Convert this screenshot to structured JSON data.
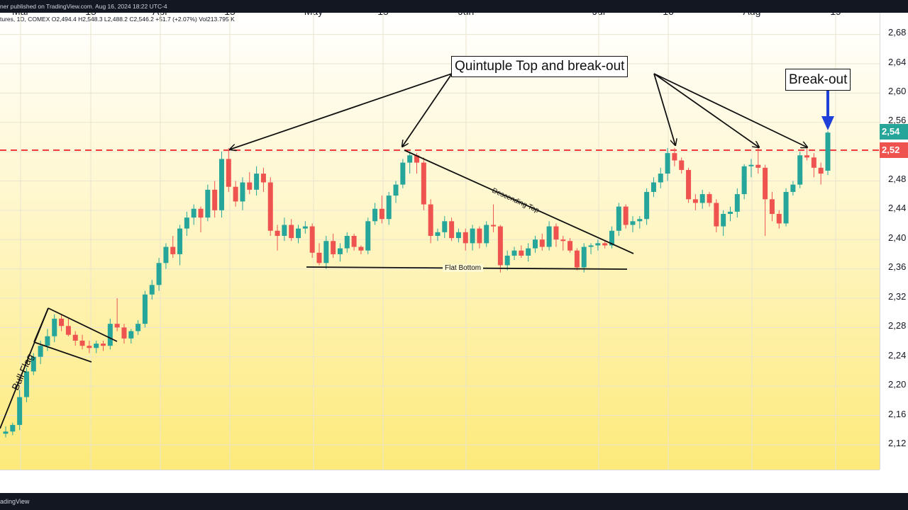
{
  "header": {
    "publish_line": "ner published on TradingView.com, Aug 16, 2024 18:22 UTC-4",
    "ohlc_line": "tures, 1D, COMEX  O2,494.4  H2,548.3  L2,488.2  C2,546.2  +51.7 (+2.07%)  Vol213.795 K"
  },
  "footer": {
    "brand": "adingView"
  },
  "colors": {
    "up": "#26a69a",
    "down": "#ef5350",
    "resistance": "#ef3b3b",
    "arrow": "#1e3fd8"
  },
  "chart_data": {
    "type": "candlestick",
    "price_axis": {
      "ylim": [
        2100,
        2690
      ],
      "ticks": [
        "2,68",
        "2,64",
        "2,60",
        "2,56",
        "2,52",
        "2,48",
        "2,44",
        "2,40",
        "2,36",
        "2,32",
        "2,28",
        "2,24",
        "2,20",
        "2,16",
        "2,12"
      ]
    },
    "time_axis": {
      "ticks": [
        "Mar",
        "15",
        "Apr",
        "15",
        "May",
        "15",
        "Jun",
        "Jul",
        "16",
        "Aug",
        "19"
      ]
    },
    "last_price_label": "2,54",
    "resistance_label": "2,52",
    "resistance_level": 2522,
    "candles": [
      [
        2135,
        2145,
        2130,
        2138
      ],
      [
        2138,
        2150,
        2133,
        2147
      ],
      [
        2147,
        2195,
        2140,
        2185
      ],
      [
        2185,
        2225,
        2178,
        2220
      ],
      [
        2220,
        2245,
        2215,
        2240
      ],
      [
        2240,
        2262,
        2230,
        2255
      ],
      [
        2255,
        2278,
        2248,
        2268
      ],
      [
        2268,
        2298,
        2260,
        2292
      ],
      [
        2292,
        2298,
        2275,
        2282
      ],
      [
        2282,
        2292,
        2268,
        2270
      ],
      [
        2270,
        2275,
        2255,
        2262
      ],
      [
        2262,
        2270,
        2250,
        2255
      ],
      [
        2255,
        2262,
        2245,
        2252
      ],
      [
        2252,
        2262,
        2245,
        2258
      ],
      [
        2258,
        2262,
        2248,
        2255
      ],
      [
        2255,
        2292,
        2250,
        2285
      ],
      [
        2285,
        2320,
        2275,
        2280
      ],
      [
        2280,
        2285,
        2258,
        2265
      ],
      [
        2265,
        2278,
        2258,
        2275
      ],
      [
        2275,
        2290,
        2270,
        2285
      ],
      [
        2285,
        2330,
        2280,
        2325
      ],
      [
        2325,
        2345,
        2318,
        2338
      ],
      [
        2338,
        2375,
        2330,
        2368
      ],
      [
        2368,
        2395,
        2360,
        2390
      ],
      [
        2390,
        2405,
        2375,
        2380
      ],
      [
        2380,
        2420,
        2365,
        2415
      ],
      [
        2415,
        2438,
        2405,
        2430
      ],
      [
        2430,
        2448,
        2420,
        2442
      ],
      [
        2442,
        2445,
        2410,
        2430
      ],
      [
        2430,
        2475,
        2425,
        2468
      ],
      [
        2468,
        2480,
        2430,
        2440
      ],
      [
        2440,
        2520,
        2430,
        2510
      ],
      [
        2510,
        2525,
        2465,
        2472
      ],
      [
        2472,
        2480,
        2445,
        2452
      ],
      [
        2452,
        2485,
        2440,
        2478
      ],
      [
        2478,
        2492,
        2462,
        2468
      ],
      [
        2468,
        2500,
        2460,
        2490
      ],
      [
        2490,
        2498,
        2465,
        2478
      ],
      [
        2478,
        2485,
        2405,
        2412
      ],
      [
        2412,
        2420,
        2385,
        2405
      ],
      [
        2405,
        2430,
        2398,
        2420
      ],
      [
        2420,
        2428,
        2398,
        2402
      ],
      [
        2402,
        2420,
        2395,
        2415
      ],
      [
        2415,
        2425,
        2408,
        2418
      ],
      [
        2418,
        2422,
        2375,
        2382
      ],
      [
        2382,
        2395,
        2365,
        2368
      ],
      [
        2368,
        2405,
        2360,
        2398
      ],
      [
        2398,
        2408,
        2375,
        2380
      ],
      [
        2380,
        2395,
        2370,
        2388
      ],
      [
        2388,
        2410,
        2382,
        2405
      ],
      [
        2405,
        2408,
        2385,
        2390
      ],
      [
        2390,
        2392,
        2380,
        2385
      ],
      [
        2385,
        2430,
        2380,
        2425
      ],
      [
        2425,
        2450,
        2420,
        2442
      ],
      [
        2442,
        2460,
        2422,
        2428
      ],
      [
        2428,
        2465,
        2420,
        2460
      ],
      [
        2460,
        2480,
        2450,
        2475
      ],
      [
        2475,
        2510,
        2470,
        2505
      ],
      [
        2505,
        2520,
        2490,
        2515
      ],
      [
        2515,
        2518,
        2490,
        2505
      ],
      [
        2505,
        2512,
        2440,
        2448
      ],
      [
        2448,
        2455,
        2395,
        2405
      ],
      [
        2405,
        2415,
        2398,
        2410
      ],
      [
        2410,
        2432,
        2402,
        2425
      ],
      [
        2425,
        2430,
        2398,
        2402
      ],
      [
        2402,
        2415,
        2396,
        2410
      ],
      [
        2410,
        2415,
        2385,
        2395
      ],
      [
        2395,
        2420,
        2385,
        2415
      ],
      [
        2415,
        2418,
        2388,
        2395
      ],
      [
        2395,
        2425,
        2390,
        2420
      ],
      [
        2420,
        2448,
        2410,
        2418
      ],
      [
        2418,
        2420,
        2355,
        2365
      ],
      [
        2365,
        2385,
        2358,
        2378
      ],
      [
        2378,
        2390,
        2372,
        2385
      ],
      [
        2385,
        2392,
        2375,
        2378
      ],
      [
        2378,
        2395,
        2370,
        2388
      ],
      [
        2388,
        2405,
        2382,
        2400
      ],
      [
        2400,
        2408,
        2385,
        2390
      ],
      [
        2390,
        2425,
        2385,
        2418
      ],
      [
        2418,
        2422,
        2390,
        2400
      ],
      [
        2400,
        2405,
        2385,
        2398
      ],
      [
        2398,
        2402,
        2382,
        2385
      ],
      [
        2385,
        2388,
        2358,
        2362
      ],
      [
        2362,
        2395,
        2355,
        2390
      ],
      [
        2390,
        2395,
        2380,
        2392
      ],
      [
        2392,
        2400,
        2385,
        2395
      ],
      [
        2395,
        2398,
        2388,
        2392
      ],
      [
        2392,
        2418,
        2388,
        2412
      ],
      [
        2412,
        2450,
        2405,
        2445
      ],
      [
        2445,
        2448,
        2415,
        2420
      ],
      [
        2420,
        2432,
        2410,
        2425
      ],
      [
        2425,
        2432,
        2415,
        2428
      ],
      [
        2428,
        2470,
        2420,
        2465
      ],
      [
        2465,
        2485,
        2458,
        2478
      ],
      [
        2478,
        2498,
        2470,
        2490
      ],
      [
        2490,
        2525,
        2480,
        2518
      ],
      [
        2518,
        2525,
        2500,
        2508
      ],
      [
        2508,
        2512,
        2490,
        2495
      ],
      [
        2495,
        2498,
        2450,
        2455
      ],
      [
        2455,
        2462,
        2440,
        2450
      ],
      [
        2450,
        2468,
        2442,
        2462
      ],
      [
        2462,
        2465,
        2445,
        2450
      ],
      [
        2450,
        2455,
        2410,
        2418
      ],
      [
        2418,
        2440,
        2405,
        2435
      ],
      [
        2435,
        2445,
        2425,
        2438
      ],
      [
        2438,
        2470,
        2430,
        2462
      ],
      [
        2462,
        2503,
        2455,
        2500
      ],
      [
        2500,
        2510,
        2485,
        2502
      ],
      [
        2502,
        2525,
        2490,
        2498
      ],
      [
        2498,
        2502,
        2405,
        2455
      ],
      [
        2455,
        2465,
        2425,
        2435
      ],
      [
        2435,
        2440,
        2415,
        2422
      ],
      [
        2422,
        2470,
        2418,
        2465
      ],
      [
        2465,
        2480,
        2460,
        2475
      ],
      [
        2475,
        2520,
        2470,
        2515
      ],
      [
        2515,
        2525,
        2508,
        2512
      ],
      [
        2512,
        2518,
        2485,
        2498
      ],
      [
        2498,
        2505,
        2475,
        2490
      ],
      [
        2494,
        2548,
        2488,
        2546
      ]
    ]
  },
  "annotations": {
    "quintuple": "Quintuple Top and break-out",
    "breakout": "Break-out",
    "bull_flag": "Bull Flag",
    "descending_top": "Descending Top",
    "flat_bottom": "Flat Bottom"
  }
}
